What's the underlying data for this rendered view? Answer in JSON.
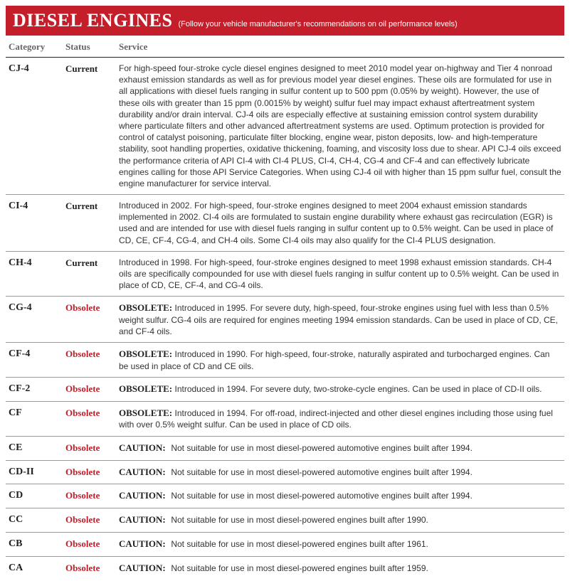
{
  "header": {
    "title": "DIESEL ENGINES",
    "subtitle": "(Follow your vehicle manufacturer's recommendations on oil performance levels)"
  },
  "columns": {
    "category": "Category",
    "status": "Status",
    "service": "Service"
  },
  "status_colors": {
    "current": "#222222",
    "obsolete": "#c41e2a"
  },
  "rows": [
    {
      "category": "CJ-4",
      "status": "Current",
      "status_type": "current",
      "prefix": "",
      "service": "For high-speed four-stroke cycle diesel engines designed to meet 2010 model year on-highway and Tier 4 nonroad exhaust emission standards as well as for previous model year diesel engines. These oils are formulated for use in all applications with diesel fuels ranging in sulfur content up to 500 ppm (0.05% by weight). However, the use of these oils with greater than 15 ppm (0.0015% by weight) sulfur fuel may impact exhaust aftertreatment system durability and/or drain interval. CJ-4 oils are especially effective at sustaining emission control system durability where particulate filters and other advanced aftertreatment systems are used. Optimum protection is provided for control of catalyst poisoning, particulate filter blocking, engine wear, piston deposits, low- and high-temperature stability, soot handling properties, oxidative thickening, foaming, and viscosity loss due to shear. API CJ-4 oils exceed the performance criteria of API CI-4 with CI-4 PLUS, CI-4, CH-4, CG-4 and CF-4 and can effectively lubricate engines calling for those API Service Categories. When using CJ-4 oil with higher than 15 ppm sulfur fuel, consult the engine manufacturer for service interval."
    },
    {
      "category": "CI-4",
      "status": "Current",
      "status_type": "current",
      "prefix": "",
      "service": "Introduced in 2002. For high-speed, four-stroke engines designed to meet 2004 exhaust emission standards implemented in 2002. CI-4 oils are formulated to sustain engine durability where exhaust gas recirculation (EGR) is used and are intended for use with diesel fuels ranging in sulfur content up to 0.5% weight. Can be used in place of CD, CE, CF-4, CG-4, and CH-4 oils. Some CI-4 oils may also qualify for the CI-4 PLUS designation."
    },
    {
      "category": "CH-4",
      "status": "Current",
      "status_type": "current",
      "prefix": "",
      "service": "Introduced in 1998. For high-speed, four-stroke engines designed to meet 1998 exhaust emission standards. CH-4 oils are specifically compounded for use with diesel fuels ranging in sulfur content up to 0.5% weight. Can be used in place of CD, CE, CF-4, and CG-4 oils."
    },
    {
      "category": "CG-4",
      "status": "Obsolete",
      "status_type": "obsolete",
      "prefix": "OBSOLETE:",
      "service": "Introduced in 1995. For severe duty, high-speed, four-stroke engines using fuel with less than 0.5% weight sulfur. CG-4 oils are required for engines meeting 1994 emission standards. Can be used in place of CD, CE, and CF-4 oils."
    },
    {
      "category": "CF-4",
      "status": "Obsolete",
      "status_type": "obsolete",
      "prefix": "OBSOLETE:",
      "service": "Introduced in 1990. For high-speed, four-stroke, naturally aspirated and turbocharged engines. Can be used in place of CD and CE oils."
    },
    {
      "category": "CF-2",
      "status": "Obsolete",
      "status_type": "obsolete",
      "prefix": "OBSOLETE:",
      "service": "Introduced in 1994. For severe duty, two-stroke-cycle engines. Can be used in place of CD-II oils."
    },
    {
      "category": "CF",
      "status": "Obsolete",
      "status_type": "obsolete",
      "prefix": "OBSOLETE:",
      "service": "Introduced in 1994. For off-road, indirect-injected and other diesel engines including those using fuel with over 0.5% weight sulfur. Can be used in place of CD oils."
    },
    {
      "category": "CE",
      "status": "Obsolete",
      "status_type": "obsolete",
      "prefix": "CAUTION:",
      "service": "Not suitable for use in most diesel-powered automotive engines built after 1994."
    },
    {
      "category": "CD-II",
      "status": "Obsolete",
      "status_type": "obsolete",
      "prefix": "CAUTION:",
      "service": "Not suitable for use in most diesel-powered automotive engines built after 1994."
    },
    {
      "category": "CD",
      "status": "Obsolete",
      "status_type": "obsolete",
      "prefix": "CAUTION:",
      "service": "Not suitable for use in most diesel-powered automotive engines built after 1994."
    },
    {
      "category": "CC",
      "status": "Obsolete",
      "status_type": "obsolete",
      "prefix": "CAUTION:",
      "service": "Not suitable for use in most diesel-powered engines built after 1990."
    },
    {
      "category": "CB",
      "status": "Obsolete",
      "status_type": "obsolete",
      "prefix": "CAUTION:",
      "service": "Not suitable for use in most diesel-powered engines built after 1961."
    },
    {
      "category": "CA",
      "status": "Obsolete",
      "status_type": "obsolete",
      "prefix": "CAUTION:",
      "service": "Not suitable for use in most diesel-powered engines built after 1959."
    }
  ]
}
